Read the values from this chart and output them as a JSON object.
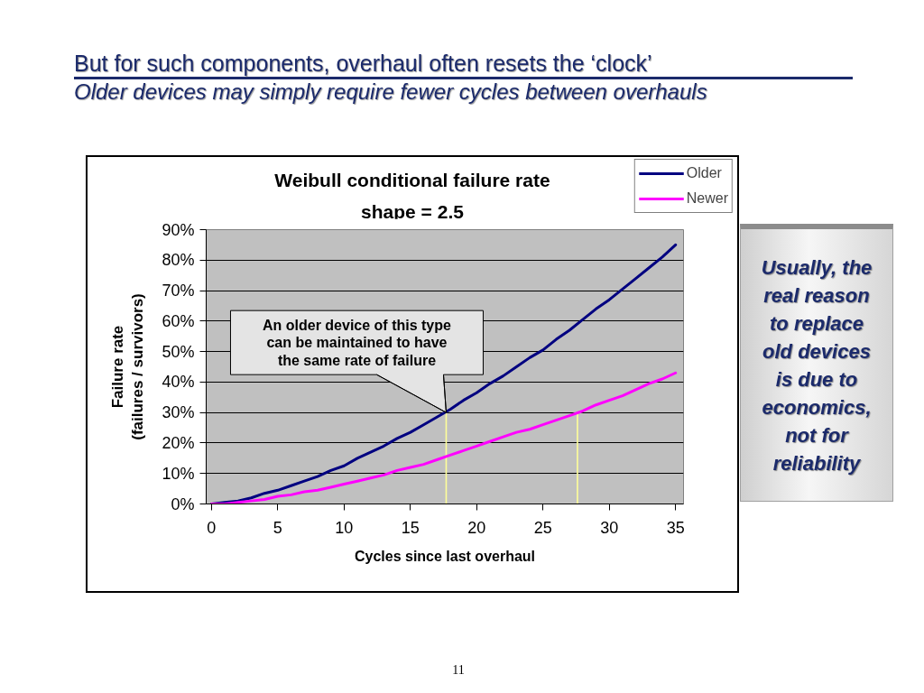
{
  "chart_data": {
    "type": "line",
    "title": "But for such components, overhaul often resets the ‘clock’",
    "subtitle": "Older devices may simply require fewer cycles between overhauls",
    "xlabel": "Cycles since last overhaul",
    "ylabel": "Failure rate\n(failures / survivors)",
    "annotations": [
      "Weibull conditional failure rate\nshape = 2.5",
      {
        "text": "An older device of this type\ncan be maintained to have\nthe same rate of failure",
        "x": 17.7,
        "y": 30
      },
      "Usually, the\nreal reason\nto replace\nold devices\nis due to\neconomics,\nnot for\nreliability",
      "11"
    ],
    "x": [
      0,
      1,
      2,
      3,
      4,
      5,
      6,
      7,
      8,
      9,
      10,
      11,
      12,
      13,
      14,
      15,
      16,
      17,
      18,
      19,
      20,
      21,
      22,
      23,
      24,
      25,
      26,
      27,
      28,
      29,
      30,
      31,
      32,
      33,
      34,
      35
    ],
    "series": [
      {
        "name": "Older",
        "color": "#000080",
        "values": [
          0,
          0.5,
          1,
          2,
          3.5,
          4.5,
          6,
          7.5,
          9,
          11,
          12.5,
          15,
          17,
          19,
          21.5,
          23.5,
          26,
          28.5,
          31,
          34,
          36.5,
          39.5,
          42,
          45,
          48,
          50.5,
          54,
          57,
          60.5,
          64,
          67,
          70.5,
          74,
          77.5,
          81,
          85
        ]
      },
      {
        "name": "Newer",
        "color": "#ff00ff",
        "values": [
          0,
          0,
          0.5,
          1,
          1.5,
          2.5,
          3,
          4,
          4.5,
          5.5,
          6.5,
          7.5,
          8.5,
          9.5,
          11,
          12,
          13,
          14.5,
          16,
          17.5,
          19,
          20.5,
          22,
          23.5,
          24.5,
          26,
          27.5,
          29,
          30.5,
          32.5,
          34,
          35.5,
          37.5,
          39.5,
          41,
          43
        ]
      },
      {
        "type": "bar",
        "color": "#ffff99",
        "x": [
          17.7,
          27.6
        ],
        "values": [
          30,
          30
        ]
      }
    ],
    "xlim": [
      -0.4,
      35.6
    ],
    "xticks": [
      0,
      5,
      10,
      15,
      20,
      25,
      30,
      35
    ],
    "ylim": [
      0,
      90
    ],
    "yticks": [
      {
        "value": 0,
        "label": "0%"
      },
      {
        "value": 10,
        "label": "10%"
      },
      {
        "value": 20,
        "label": "20%"
      },
      {
        "value": 30,
        "label": "30%"
      },
      {
        "value": 40,
        "label": "40%"
      },
      {
        "value": 50,
        "label": "50%"
      },
      {
        "value": 60,
        "label": "60%"
      },
      {
        "value": 70,
        "label": "70%"
      },
      {
        "value": 80,
        "label": "80%"
      },
      {
        "value": 90,
        "label": "90%"
      }
    ],
    "grid": "y",
    "legend": "top right",
    "line_style": "solid"
  }
}
